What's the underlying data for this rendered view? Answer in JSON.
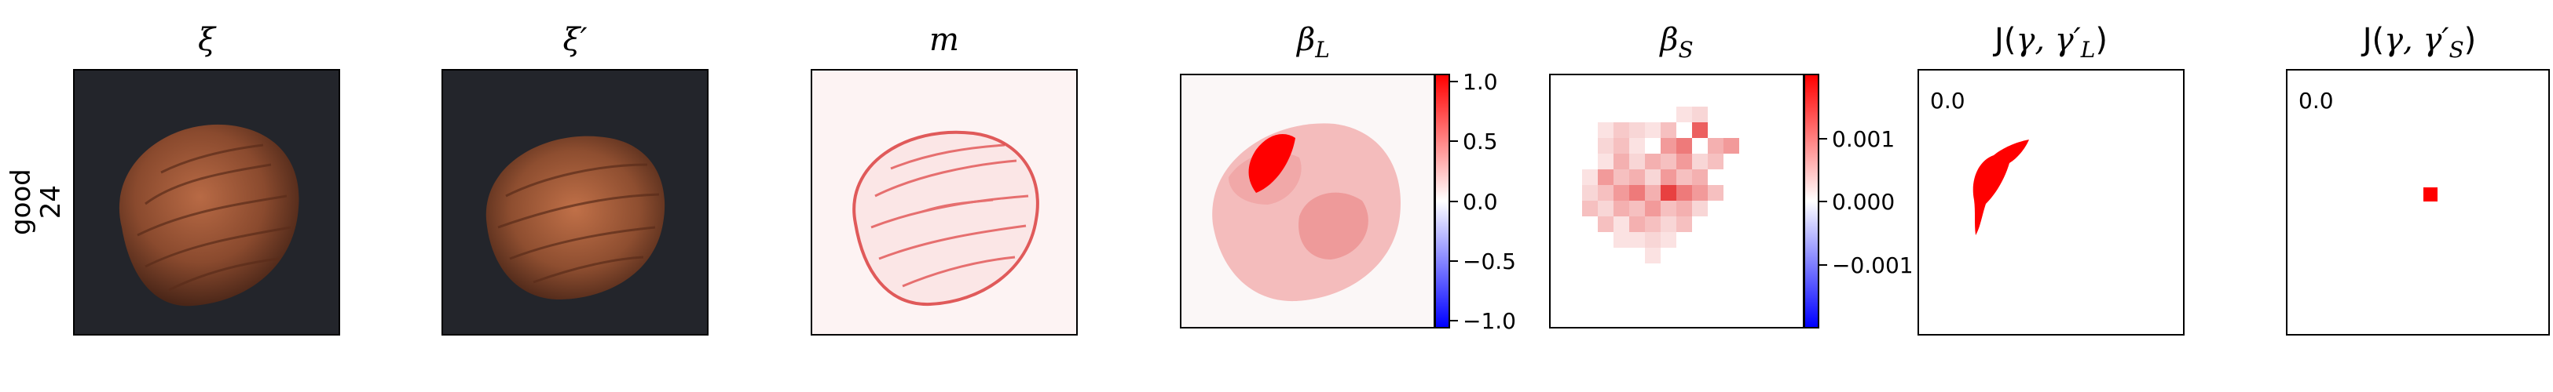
{
  "row_label": {
    "line1": "good",
    "line2": "24"
  },
  "panels": {
    "xi": {
      "title": "ξ"
    },
    "xi_prime": {
      "title": "ξ′"
    },
    "m": {
      "title": "m"
    },
    "beta_L": {
      "title": "β",
      "sub": "L",
      "colorbar": {
        "ticks": [
          "1.0",
          "0.5",
          "0.0",
          "−0.5",
          "−1.0"
        ],
        "low_color": "#0000ff",
        "high_color": "#ff0000"
      }
    },
    "beta_S": {
      "title": "β",
      "sub": "S",
      "colorbar": {
        "ticks": [
          "0.001",
          "0.000",
          "−0.001"
        ],
        "low_color": "#0000ff",
        "high_color": "#ff0000"
      }
    },
    "J_L": {
      "title_prefix": "J(",
      "title_mid": "γ, γ′",
      "title_sub": "L",
      "title_suffix": ")",
      "value": "0.0"
    },
    "J_S": {
      "title_prefix": "J(",
      "title_mid": "γ, γ′",
      "title_sub": "S",
      "title_suffix": ")",
      "value": "0.0"
    }
  },
  "colors": {
    "accent_red": "#ff0000",
    "image_bg": "#23252b",
    "nut": "#8a4a2e"
  }
}
